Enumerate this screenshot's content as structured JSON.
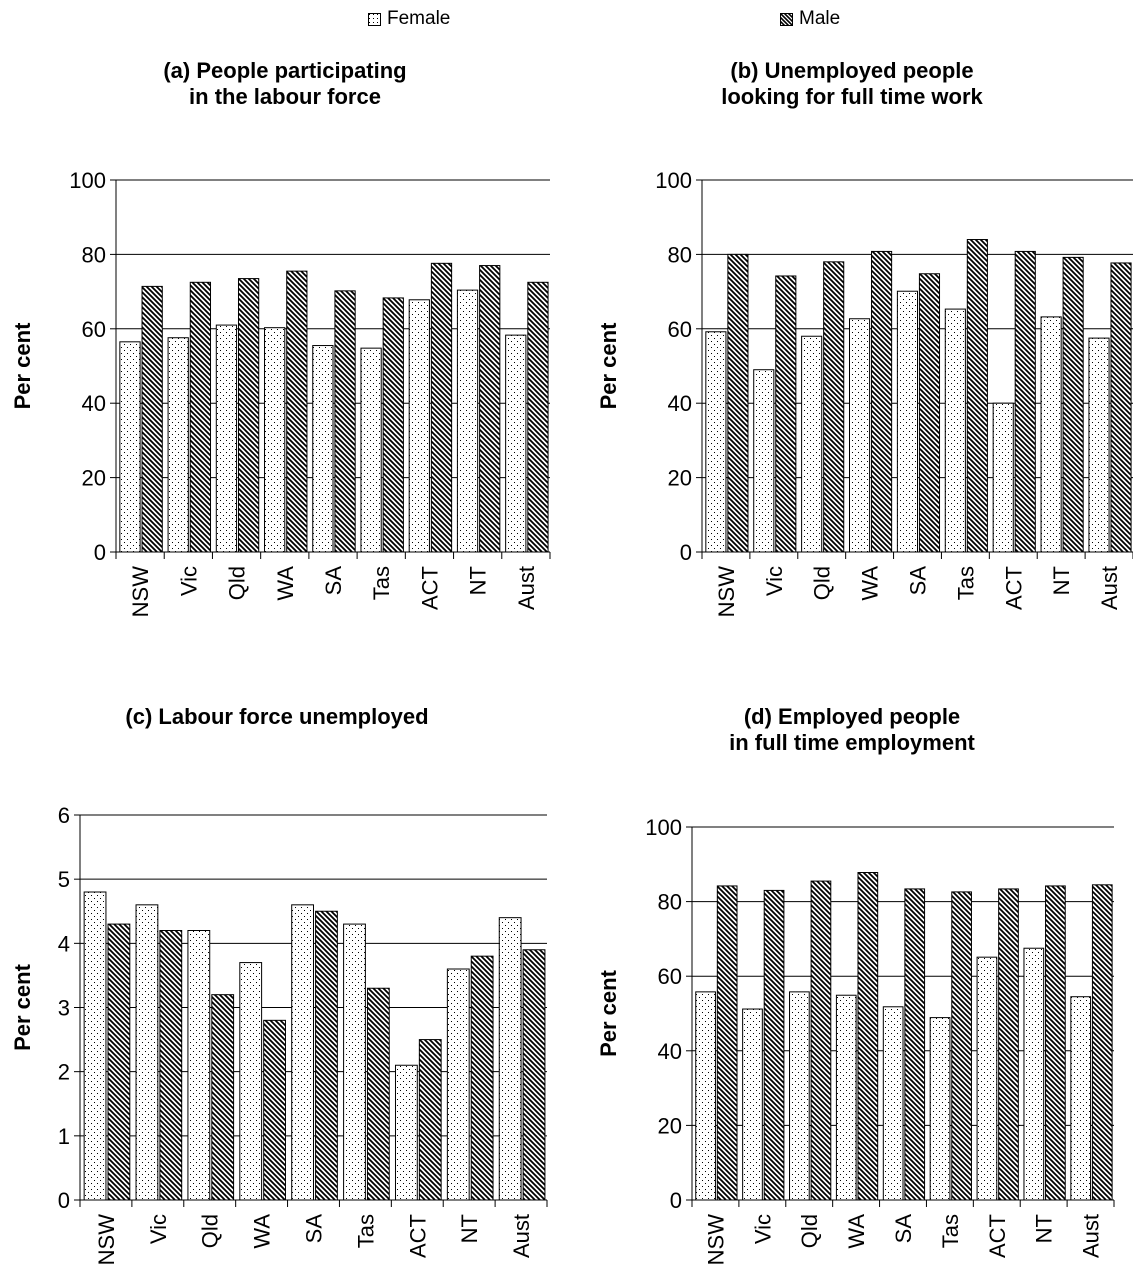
{
  "legend": {
    "female": "Female",
    "male": "Male"
  },
  "colors": {
    "axis": "#000000",
    "bar_stroke": "#000000",
    "background": "#ffffff"
  },
  "chart_data": [
    {
      "type": "bar",
      "title": "(a) People participating in the labour force",
      "title_lines": [
        "(a) People participating",
        "in the labour force"
      ],
      "ylabel": "Per cent",
      "ylim": [
        0,
        100
      ],
      "yticks": [
        0,
        20,
        40,
        60,
        80,
        100
      ],
      "grid": true,
      "categories": [
        "NSW",
        "Vic",
        "Qld",
        "WA",
        "SA",
        "Tas",
        "ACT",
        "NT",
        "Aust"
      ],
      "series": [
        {
          "name": "Female",
          "values": [
            56.5,
            57.6,
            61,
            60.3,
            55.5,
            54.8,
            67.8,
            70.4,
            58.3
          ]
        },
        {
          "name": "Male",
          "values": [
            71.4,
            72.5,
            73.5,
            75.5,
            70.2,
            68.3,
            77.6,
            77,
            72.5
          ]
        }
      ]
    },
    {
      "type": "bar",
      "title": "(b) Unemployed people looking for full time work",
      "title_lines": [
        "(b) Unemployed people",
        "looking for full time work"
      ],
      "ylabel": "Per cent",
      "ylim": [
        0,
        100
      ],
      "yticks": [
        0,
        20,
        40,
        60,
        80,
        100
      ],
      "grid": true,
      "categories": [
        "NSW",
        "Vic",
        "Qld",
        "WA",
        "SA",
        "Tas",
        "ACT",
        "NT",
        "Aust"
      ],
      "series": [
        {
          "name": "Female",
          "values": [
            59.2,
            49,
            58,
            62.7,
            70.1,
            65.3,
            40,
            63.2,
            57.5
          ]
        },
        {
          "name": "Male",
          "values": [
            80,
            74.2,
            78,
            80.8,
            74.8,
            84,
            80.8,
            79.2,
            77.7
          ]
        }
      ]
    },
    {
      "type": "bar",
      "title": "(c) Labour force unemployed",
      "title_lines": [
        "(c) Labour force unemployed"
      ],
      "ylabel": "Per cent",
      "ylim": [
        0,
        6
      ],
      "yticks": [
        0,
        1,
        2,
        3,
        4,
        5,
        6
      ],
      "grid": true,
      "categories": [
        "NSW",
        "Vic",
        "Qld",
        "WA",
        "SA",
        "Tas",
        "ACT",
        "NT",
        "Aust"
      ],
      "series": [
        {
          "name": "Female",
          "values": [
            4.8,
            4.6,
            4.2,
            3.7,
            4.6,
            4.3,
            2.1,
            3.6,
            4.4
          ]
        },
        {
          "name": "Male",
          "values": [
            4.3,
            4.2,
            3.2,
            2.8,
            4.5,
            3.3,
            2.5,
            3.8,
            3.9
          ]
        }
      ]
    },
    {
      "type": "bar",
      "title": "(d) Employed people in full time employment",
      "title_lines": [
        "(d) Employed people",
        "in full time employment"
      ],
      "ylabel": "Per cent",
      "ylim": [
        0,
        100
      ],
      "yticks": [
        0,
        20,
        40,
        60,
        80,
        100
      ],
      "grid": true,
      "categories": [
        "NSW",
        "Vic",
        "Qld",
        "WA",
        "SA",
        "Tas",
        "ACT",
        "NT",
        "Aust"
      ],
      "series": [
        {
          "name": "Female",
          "values": [
            55.8,
            51.2,
            55.8,
            54.9,
            51.8,
            48.9,
            65.1,
            67.5,
            54.5
          ]
        },
        {
          "name": "Male",
          "values": [
            84.2,
            83,
            85.5,
            87.8,
            83.4,
            82.6,
            83.4,
            84.2,
            84.5
          ]
        }
      ]
    }
  ]
}
